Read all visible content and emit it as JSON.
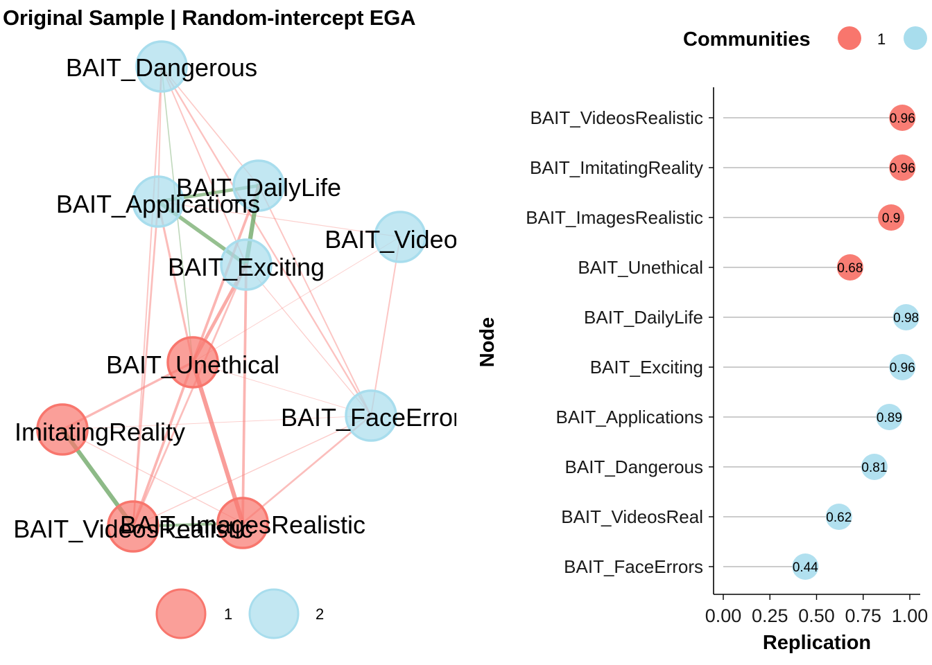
{
  "left_plot": {
    "title": "Original Sample | Random-intercept EGA",
    "community_legend": [
      "1",
      "2"
    ],
    "colors": {
      "community_1": "#F8766D",
      "community_2": "#A8DDED",
      "neg_edge": "#F8837E",
      "pos_edge": "#6FA867"
    }
  },
  "right_plot": {
    "legend_title": "Communities",
    "legend_labels": [
      "1"
    ],
    "ylabel": "Node",
    "xlabel": "Replication",
    "x_ticks": [
      "0.00",
      "0.25",
      "0.50",
      "0.75",
      "1.00"
    ]
  },
  "chart_data": [
    {
      "type": "network",
      "title": "Original Sample | Random-intercept EGA",
      "nodes": [
        {
          "label": "BAIT_Dangerous",
          "community": 2
        },
        {
          "label": "BAIT_DailyLife",
          "community": 2
        },
        {
          "label": "BAIT_Applications",
          "community": 2
        },
        {
          "label": "BAIT_VideosReal",
          "community": 2,
          "display": "BAIT_Videosl"
        },
        {
          "label": "BAIT_Exciting",
          "community": 2
        },
        {
          "label": "BAIT_Unethical",
          "community": 1
        },
        {
          "label": "BAIT_FaceErrors",
          "community": 2,
          "display": "BAIT_FaceError"
        },
        {
          "label": "BAIT_ImitatingReality",
          "community": 1,
          "display": "ImitatingReality"
        },
        {
          "label": "BAIT_VideosRealistic",
          "community": 1
        },
        {
          "label": "BAIT_ImagesRealistic",
          "community": 1
        }
      ],
      "edges": [
        {
          "from": "BAIT_Dangerous",
          "to": "BAIT_Applications",
          "sign": "negative",
          "weight": 0.2
        },
        {
          "from": "BAIT_Dangerous",
          "to": "BAIT_Unethical",
          "sign": "positive",
          "weight": 0.15
        },
        {
          "from": "BAIT_Dangerous",
          "to": "BAIT_Exciting",
          "sign": "negative",
          "weight": 0.2
        },
        {
          "from": "BAIT_Dangerous",
          "to": "BAIT_FaceErrors",
          "sign": "negative",
          "weight": 0.25
        },
        {
          "from": "BAIT_Dangerous",
          "to": "BAIT_DailyLife",
          "sign": "negative",
          "weight": 0.15
        },
        {
          "from": "BAIT_Dangerous",
          "to": "BAIT_VideosRealistic",
          "sign": "negative",
          "weight": 0.2
        },
        {
          "from": "BAIT_Applications",
          "to": "BAIT_DailyLife",
          "sign": "positive",
          "weight": 0.6
        },
        {
          "from": "BAIT_Applications",
          "to": "BAIT_Exciting",
          "sign": "positive",
          "weight": 0.7
        },
        {
          "from": "BAIT_Applications",
          "to": "BAIT_Unethical",
          "sign": "negative",
          "weight": 0.35
        },
        {
          "from": "BAIT_Applications",
          "to": "BAIT_VideosRealistic",
          "sign": "negative",
          "weight": 0.3
        },
        {
          "from": "BAIT_Applications",
          "to": "BAIT_VideosReal",
          "sign": "negative",
          "weight": 0.08
        },
        {
          "from": "BAIT_DailyLife",
          "to": "BAIT_Exciting",
          "sign": "positive",
          "weight": 0.8
        },
        {
          "from": "BAIT_DailyLife",
          "to": "BAIT_Unethical",
          "sign": "negative",
          "weight": 0.45
        },
        {
          "from": "BAIT_DailyLife",
          "to": "BAIT_FaceErrors",
          "sign": "negative",
          "weight": 0.2
        },
        {
          "from": "BAIT_Exciting",
          "to": "BAIT_Unethical",
          "sign": "negative",
          "weight": 0.6
        },
        {
          "from": "BAIT_Exciting",
          "to": "BAIT_ImagesRealistic",
          "sign": "negative",
          "weight": 0.45
        },
        {
          "from": "BAIT_Exciting",
          "to": "BAIT_VideosRealistic",
          "sign": "negative",
          "weight": 0.3
        },
        {
          "from": "BAIT_Exciting",
          "to": "BAIT_FaceErrors",
          "sign": "negative",
          "weight": 0.1
        },
        {
          "from": "BAIT_VideosReal",
          "to": "BAIT_FaceErrors",
          "sign": "negative",
          "weight": 0.2
        },
        {
          "from": "BAIT_VideosReal",
          "to": "BAIT_Unethical",
          "sign": "negative",
          "weight": 0.05
        },
        {
          "from": "BAIT_Unethical",
          "to": "BAIT_ImitatingReality",
          "sign": "negative",
          "weight": 0.4
        },
        {
          "from": "BAIT_Unethical",
          "to": "BAIT_VideosRealistic",
          "sign": "negative",
          "weight": 0.45
        },
        {
          "from": "BAIT_Unethical",
          "to": "BAIT_ImagesRealistic",
          "sign": "negative",
          "weight": 0.8
        },
        {
          "from": "BAIT_Unethical",
          "to": "BAIT_FaceErrors",
          "sign": "negative",
          "weight": 0.05
        },
        {
          "from": "BAIT_ImitatingReality",
          "to": "BAIT_VideosRealistic",
          "sign": "positive",
          "weight": 0.8
        },
        {
          "from": "BAIT_ImitatingReality",
          "to": "BAIT_ImagesRealistic",
          "sign": "negative",
          "weight": 0.1
        },
        {
          "from": "BAIT_ImitatingReality",
          "to": "BAIT_FaceErrors",
          "sign": "negative",
          "weight": 0.05
        },
        {
          "from": "BAIT_VideosRealistic",
          "to": "BAIT_ImagesRealistic",
          "sign": "positive",
          "weight": 0.5
        },
        {
          "from": "BAIT_VideosRealistic",
          "to": "BAIT_FaceErrors",
          "sign": "negative",
          "weight": 0.12
        },
        {
          "from": "BAIT_ImagesRealistic",
          "to": "BAIT_FaceErrors",
          "sign": "negative",
          "weight": 0.3
        }
      ]
    },
    {
      "type": "lollipop",
      "ylabel": "Node",
      "xlabel": "Replication",
      "xlim": [
        0,
        1
      ],
      "x_ticks": [
        0.0,
        0.25,
        0.5,
        0.75,
        1.0
      ],
      "legend_title": "Communities",
      "points": [
        {
          "node": "BAIT_VideosRealistic",
          "value": 0.96,
          "community": 1,
          "label": "0.96"
        },
        {
          "node": "BAIT_ImitatingReality",
          "value": 0.96,
          "community": 1,
          "label": "0.96"
        },
        {
          "node": "BAIT_ImagesRealistic",
          "value": 0.9,
          "community": 1,
          "label": "0.9"
        },
        {
          "node": "BAIT_Unethical",
          "value": 0.68,
          "community": 1,
          "label": "0.68"
        },
        {
          "node": "BAIT_DailyLife",
          "value": 0.98,
          "community": 2,
          "label": "0.98"
        },
        {
          "node": "BAIT_Exciting",
          "value": 0.96,
          "community": 2,
          "label": "0.96"
        },
        {
          "node": "BAIT_Applications",
          "value": 0.89,
          "community": 2,
          "label": "0.89"
        },
        {
          "node": "BAIT_Dangerous",
          "value": 0.81,
          "community": 2,
          "label": "0.81"
        },
        {
          "node": "BAIT_VideosReal",
          "value": 0.62,
          "community": 2,
          "label": "0.62"
        },
        {
          "node": "BAIT_FaceErrors",
          "value": 0.44,
          "community": 2,
          "label": "0.44"
        }
      ]
    }
  ]
}
